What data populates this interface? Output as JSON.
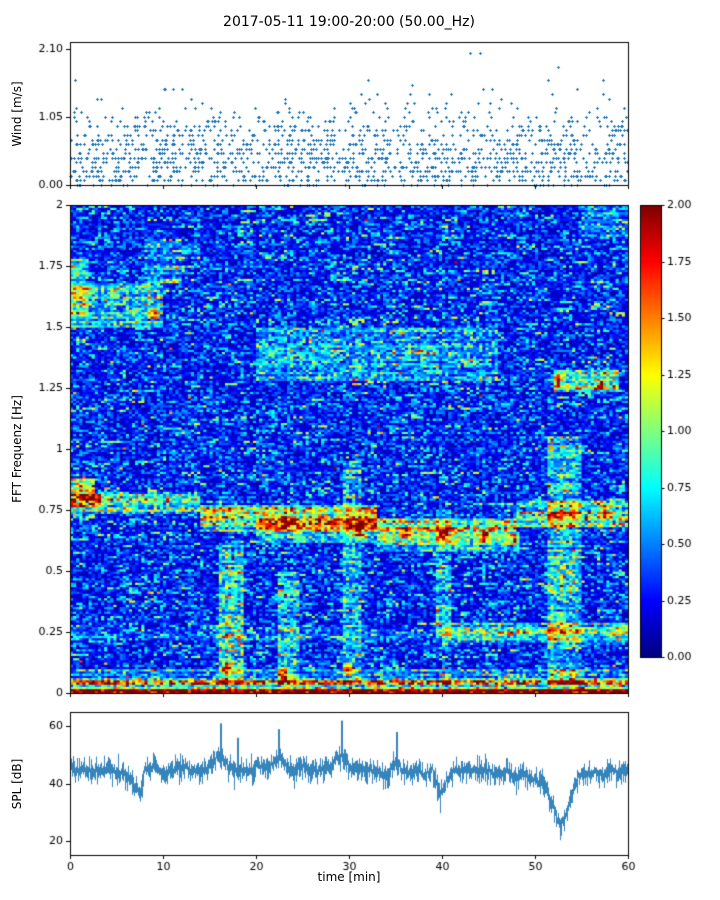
{
  "title": "2017-05-11 19:00-20:00 (50.00_Hz)",
  "colors": {
    "series": "#1f77b4",
    "axis": "#000000",
    "background": "#ffffff"
  },
  "chart_data": [
    {
      "type": "scatter",
      "name": "wind-speed",
      "ylabel": "Wind [m/s]",
      "xlim": [
        0,
        60
      ],
      "ylim": [
        0,
        2.2
      ],
      "yticks": [
        [
          0,
          "0.00"
        ],
        [
          1.05,
          "1.05"
        ],
        [
          2.1,
          "2.10"
        ]
      ],
      "marker": "+",
      "point_count": 1500,
      "y_step": 0.07,
      "t_step": 0.08,
      "distribution": {
        "mean": 0.45,
        "sd": 0.4,
        "max": 2.1
      }
    },
    {
      "type": "heatmap",
      "name": "fft-spectrogram",
      "ylabel": "FFT Frequenz [Hz]",
      "xlim": [
        0,
        60
      ],
      "ylim": [
        0,
        2
      ],
      "zlim": [
        0,
        2
      ],
      "colormap": "jet",
      "yticks": [
        [
          0,
          "0"
        ],
        [
          0.25,
          "0.25"
        ],
        [
          0.5,
          "0.5"
        ],
        [
          0.75,
          "0.75"
        ],
        [
          1,
          "1"
        ],
        [
          1.25,
          "1.25"
        ],
        [
          1.5,
          "1.5"
        ],
        [
          1.75,
          "1.75"
        ],
        [
          2,
          "2"
        ]
      ],
      "colorbar_ticks": [
        [
          0,
          "0.00"
        ],
        [
          0.25,
          "0.25"
        ],
        [
          0.5,
          "0.50"
        ],
        [
          0.75,
          "0.75"
        ],
        [
          1,
          "1.00"
        ],
        [
          1.25,
          "1.25"
        ],
        [
          1.5,
          "1.50"
        ],
        [
          1.75,
          "1.75"
        ],
        [
          2,
          "2.00"
        ]
      ],
      "grid": {
        "nt": 180,
        "nf": 220
      },
      "background": {
        "base": 0.1,
        "amp": 0.38
      },
      "features": [
        {
          "t": [
            0,
            60
          ],
          "f": [
            0,
            0.022
          ],
          "add": 1.9,
          "solid": true
        },
        {
          "t": [
            0,
            60
          ],
          "f": [
            0.022,
            0.05
          ],
          "add": 0.85
        },
        {
          "t": [
            0,
            60
          ],
          "f": [
            0.05,
            0.1
          ],
          "add": 0.3
        },
        {
          "t": [
            0,
            14
          ],
          "f": [
            0.74,
            0.83
          ],
          "add": 0.5
        },
        {
          "t": [
            0,
            2.5
          ],
          "f": [
            0.76,
            0.88
          ],
          "add": 0.7
        },
        {
          "t": [
            14,
            33
          ],
          "f": [
            0.66,
            0.77
          ],
          "add": 0.55
        },
        {
          "t": [
            20,
            48
          ],
          "f": [
            0.62,
            0.72
          ],
          "add": 0.6
        },
        {
          "t": [
            33,
            48
          ],
          "f": [
            0.58,
            0.68
          ],
          "add": 0.35
        },
        {
          "t": [
            48,
            60
          ],
          "f": [
            0.68,
            0.79
          ],
          "add": 0.55
        },
        {
          "t": [
            0,
            10
          ],
          "f": [
            1.5,
            1.68
          ],
          "add": 0.35
        },
        {
          "t": [
            0,
            2
          ],
          "f": [
            1.55,
            1.78
          ],
          "add": 0.4
        },
        {
          "t": [
            20,
            46
          ],
          "f": [
            1.28,
            1.5
          ],
          "add": 0.22
        },
        {
          "t": [
            52,
            59
          ],
          "f": [
            1.24,
            1.33
          ],
          "add": 0.75
        },
        {
          "t": [
            40,
            60
          ],
          "f": [
            0.21,
            0.29
          ],
          "add": 0.4
        },
        {
          "t": [
            0,
            60
          ],
          "f": [
            0.22,
            0.27
          ],
          "add": 0.12
        },
        {
          "t": [
            16,
            18.5
          ],
          "f": [
            0.04,
            0.62
          ],
          "add": 0.45
        },
        {
          "t": [
            22.5,
            24.5
          ],
          "f": [
            0.05,
            0.5
          ],
          "add": 0.4
        },
        {
          "t": [
            29.5,
            31.2
          ],
          "f": [
            0.05,
            0.95
          ],
          "add": 0.35
        },
        {
          "t": [
            39.5,
            41
          ],
          "f": [
            0.18,
            0.75
          ],
          "add": 0.28
        },
        {
          "t": [
            51.5,
            55
          ],
          "f": [
            0.03,
            1.05
          ],
          "add": 0.4
        },
        {
          "t": [
            8,
            12
          ],
          "f": [
            1.68,
            1.85
          ],
          "add": 0.22
        },
        {
          "t": [
            55,
            60
          ],
          "f": [
            1.86,
            2.0
          ],
          "add": 0.25
        }
      ],
      "hotspots": [
        [
          23,
          0.7
        ],
        [
          31,
          0.67
        ],
        [
          40,
          0.65
        ],
        [
          44.5,
          0.64
        ],
        [
          57.5,
          0.745
        ],
        [
          3,
          0.79
        ],
        [
          52.5,
          1.28
        ],
        [
          57,
          1.27
        ],
        [
          30,
          0.1
        ],
        [
          23,
          0.08
        ],
        [
          40.5,
          0.06
        ],
        [
          17,
          0.1
        ],
        [
          9,
          1.56
        ],
        [
          36,
          0.66
        ],
        [
          48,
          0.63
        ]
      ]
    },
    {
      "type": "line",
      "name": "spl",
      "ylabel": "SPL [dB]",
      "xlabel": "time [min]",
      "xlim": [
        0,
        60
      ],
      "ylim": [
        15,
        65
      ],
      "yticks": [
        [
          20,
          "20"
        ],
        [
          40,
          "40"
        ],
        [
          60,
          "60"
        ]
      ],
      "xticks": [
        [
          0,
          "0"
        ],
        [
          10,
          "10"
        ],
        [
          20,
          "20"
        ],
        [
          30,
          "30"
        ],
        [
          40,
          "40"
        ],
        [
          50,
          "50"
        ],
        [
          60,
          "60"
        ]
      ],
      "envelope": [
        [
          0,
          46
        ],
        [
          1,
          44
        ],
        [
          2,
          45
        ],
        [
          3,
          44
        ],
        [
          4,
          46
        ],
        [
          5,
          43
        ],
        [
          6,
          44
        ],
        [
          7,
          39
        ],
        [
          7.5,
          37
        ],
        [
          8,
          45
        ],
        [
          9,
          46
        ],
        [
          10,
          44
        ],
        [
          11,
          45
        ],
        [
          12,
          46
        ],
        [
          13,
          44
        ],
        [
          14,
          45
        ],
        [
          15,
          46
        ],
        [
          16,
          50
        ],
        [
          17,
          46
        ],
        [
          18,
          45
        ],
        [
          19,
          44
        ],
        [
          20,
          46
        ],
        [
          21,
          45
        ],
        [
          22,
          48
        ],
        [
          22.5,
          50
        ],
        [
          23,
          47
        ],
        [
          24,
          45
        ],
        [
          25,
          46
        ],
        [
          26,
          44
        ],
        [
          27,
          45
        ],
        [
          28,
          46
        ],
        [
          29,
          50
        ],
        [
          29.5,
          49
        ],
        [
          30,
          46
        ],
        [
          31,
          45
        ],
        [
          32,
          44
        ],
        [
          33,
          45
        ],
        [
          34,
          43
        ],
        [
          35,
          47
        ],
        [
          36,
          44
        ],
        [
          37,
          45
        ],
        [
          38,
          43
        ],
        [
          39,
          45
        ],
        [
          39.8,
          35
        ],
        [
          40.2,
          40
        ],
        [
          41,
          44
        ],
        [
          42,
          45
        ],
        [
          43,
          44
        ],
        [
          44,
          45
        ],
        [
          45,
          44
        ],
        [
          46,
          43
        ],
        [
          47,
          44
        ],
        [
          48,
          42
        ],
        [
          49,
          43
        ],
        [
          50,
          41
        ],
        [
          51,
          40
        ],
        [
          51.8,
          33
        ],
        [
          52.3,
          28
        ],
        [
          52.8,
          26
        ],
        [
          53.3,
          30
        ],
        [
          54,
          36
        ],
        [
          54.5,
          42
        ],
        [
          55,
          44
        ],
        [
          56,
          44
        ],
        [
          57,
          43
        ],
        [
          58,
          45
        ],
        [
          59,
          44
        ],
        [
          60,
          45
        ]
      ],
      "peaks": [
        [
          16.2,
          61
        ],
        [
          18.0,
          56
        ],
        [
          22.4,
          59
        ],
        [
          29.2,
          62
        ],
        [
          35.1,
          58
        ]
      ],
      "noise": {
        "up": 3.5,
        "down": 4.5
      }
    }
  ]
}
